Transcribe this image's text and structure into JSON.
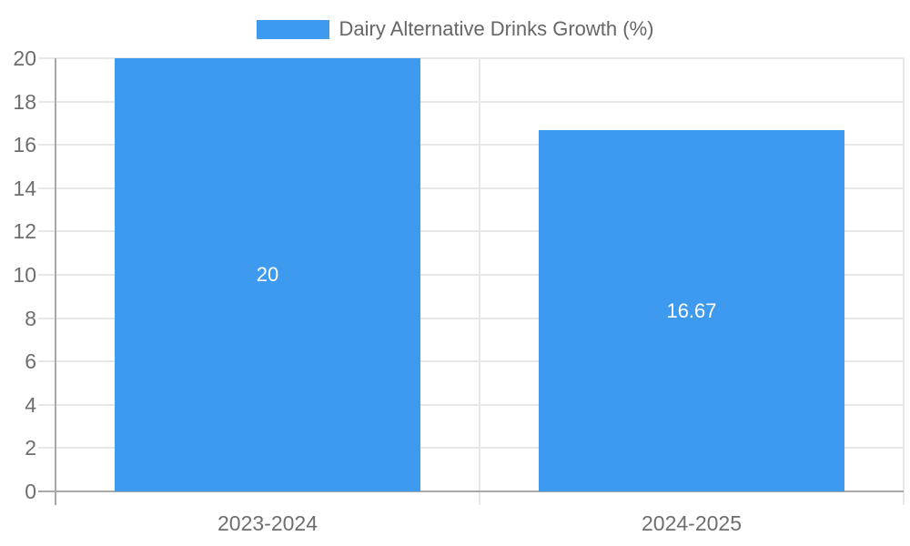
{
  "chart_data": {
    "type": "bar",
    "title": "Dairy Alternative Drinks Growth (%)",
    "categories": [
      "2023-2024",
      "2024-2025"
    ],
    "values": [
      20,
      16.67
    ],
    "value_labels": [
      "20",
      "16.67"
    ],
    "series_name": "Dairy Alternative Drinks Growth (%)",
    "xlabel": "",
    "ylabel": "",
    "ylim": [
      0,
      20
    ],
    "ytick_step": 2,
    "ytick_labels": [
      "0",
      "2",
      "4",
      "6",
      "8",
      "10",
      "12",
      "14",
      "16",
      "18",
      "20"
    ],
    "grid": true,
    "legend_position": "top"
  },
  "legend": {
    "label": "Dairy Alternative Drinks Growth (%)"
  },
  "colors": {
    "bar": "#3d9aee",
    "grid": "#e7e7e7",
    "axis": "#a8a8a8",
    "tick_label": "#6e6e6e",
    "legend_text": "#666666",
    "value_label": "#ffffff",
    "background": "#ffffff"
  }
}
